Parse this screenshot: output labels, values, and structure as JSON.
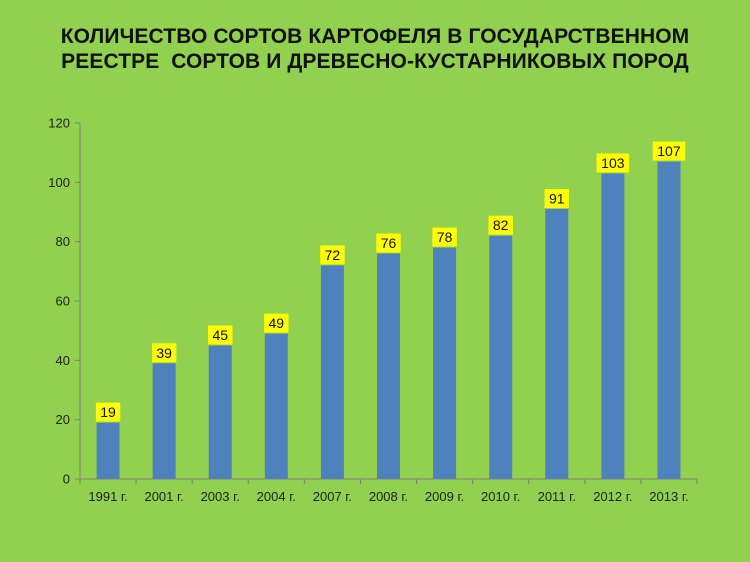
{
  "title": {
    "line1": "КОЛИЧЕСТВО СОРТОВ КАРТОФЕЛЯ В ГОСУДАРСТВЕННОМ",
    "line2": "РЕЕСТРЕ  СОРТОВ И ДРЕВЕСНО-КУСТАРНИКОВЫХ ПОРОД"
  },
  "colors": {
    "background": "#92d050",
    "bar": "#4f81bd",
    "label_box": "#ffff00",
    "axis": "#7f7f7f"
  },
  "chart_data": {
    "type": "bar",
    "title": "КОЛИЧЕСТВО СОРТОВ КАРТОФЕЛЯ В ГОСУДАРСТВЕННОМ РЕЕСТРЕ  СОРТОВ И ДРЕВЕСНО-КУСТАРНИКОВЫХ ПОРОД",
    "categories": [
      "1991 г.",
      "2001 г.",
      "2003 г.",
      "2004 г.",
      "2007 г.",
      "2008 г.",
      "2009 г.",
      "2010 г.",
      "2011 г.",
      "2012 г.",
      "2013 г."
    ],
    "values": [
      19,
      39,
      45,
      49,
      72,
      76,
      78,
      82,
      91,
      103,
      107
    ],
    "ylim": [
      0,
      120
    ],
    "yticks": [
      0,
      20,
      40,
      60,
      80,
      100,
      120
    ],
    "grid": false,
    "legend": "none",
    "data_labels": true
  }
}
